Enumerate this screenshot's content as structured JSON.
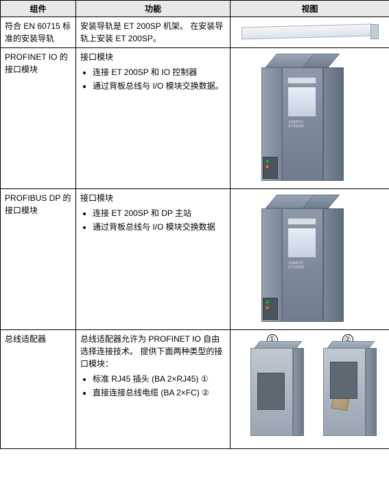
{
  "headers": {
    "component": "组件",
    "function": "功能",
    "view": "视图"
  },
  "rows": [
    {
      "component": "符合 EN 60715 标准的安装导轨",
      "func_intro": "安装导轨是 ET 200SP 机架。 在安装导轨上安装 ET 200SP。",
      "bullets": []
    },
    {
      "component": "PROFINET IO 的接口模块",
      "func_intro": "接口模块",
      "bullets": [
        "连接 ET 200SP 和 IO 控制器",
        "通过背板总线与 I/O 模块交换数据。"
      ],
      "brand": "SIMATIC\nET200SP"
    },
    {
      "component": "PROFIBUS DP 的接口模块",
      "func_intro": "接口模块",
      "bullets": [
        "连接 ET 200SP 和 DP 主站",
        "通过背板总线与 I/O 模块交换数据"
      ],
      "brand": "SIMATIC\nET200SP"
    },
    {
      "component": "总线适配器",
      "func_intro": "总线适配器允许为 PROFINET IO 自由选择连接技术。 提供下面两种类型的接口模块：",
      "bullets": [
        "标准 RJ45 插头 (BA 2×RJ45) ①",
        "直接连接总线电缆 (BA 2×FC) ②"
      ],
      "labels": {
        "n1": "①",
        "n2": "②"
      }
    }
  ],
  "colors": {
    "header_bg": "#e8e8e8",
    "module_body": "#7d8a9a",
    "module_display": "#c4d2e0",
    "led_green": "#2fb34a",
    "led_orange": "#e8792b",
    "adapter_body": "#9aa5b2"
  }
}
